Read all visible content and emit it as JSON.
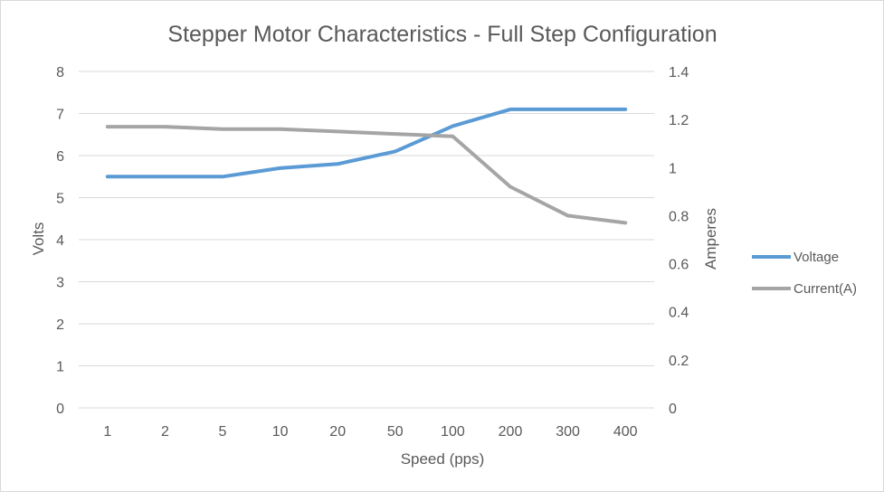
{
  "chart_data": {
    "type": "line",
    "title": "Stepper Motor Characteristics - Full Step Configuration",
    "xlabel": "Speed (pps)",
    "ylabel": "Volts",
    "y2label": "Amperes",
    "categories": [
      "1",
      "2",
      "5",
      "10",
      "20",
      "50",
      "100",
      "200",
      "300",
      "400"
    ],
    "ylim": [
      0,
      8
    ],
    "y2lim": [
      0,
      1.4
    ],
    "yticks": [
      "0",
      "1",
      "2",
      "3",
      "4",
      "5",
      "6",
      "7",
      "8"
    ],
    "y2ticks": [
      "0",
      "0.2",
      "0.4",
      "0.6",
      "0.8",
      "1",
      "1.2",
      "1.4"
    ],
    "grid": true,
    "legend_position": "right",
    "series": [
      {
        "name": "Voltage",
        "axis": "left",
        "color": "#5b9bd5",
        "values": [
          5.5,
          5.5,
          5.5,
          5.7,
          5.8,
          6.1,
          6.7,
          7.1,
          7.1,
          7.1
        ]
      },
      {
        "name": "Current(A)",
        "axis": "right",
        "color": "#a5a5a5",
        "values": [
          1.17,
          1.17,
          1.16,
          1.16,
          1.15,
          1.14,
          1.13,
          0.92,
          0.8,
          0.77
        ]
      }
    ]
  }
}
